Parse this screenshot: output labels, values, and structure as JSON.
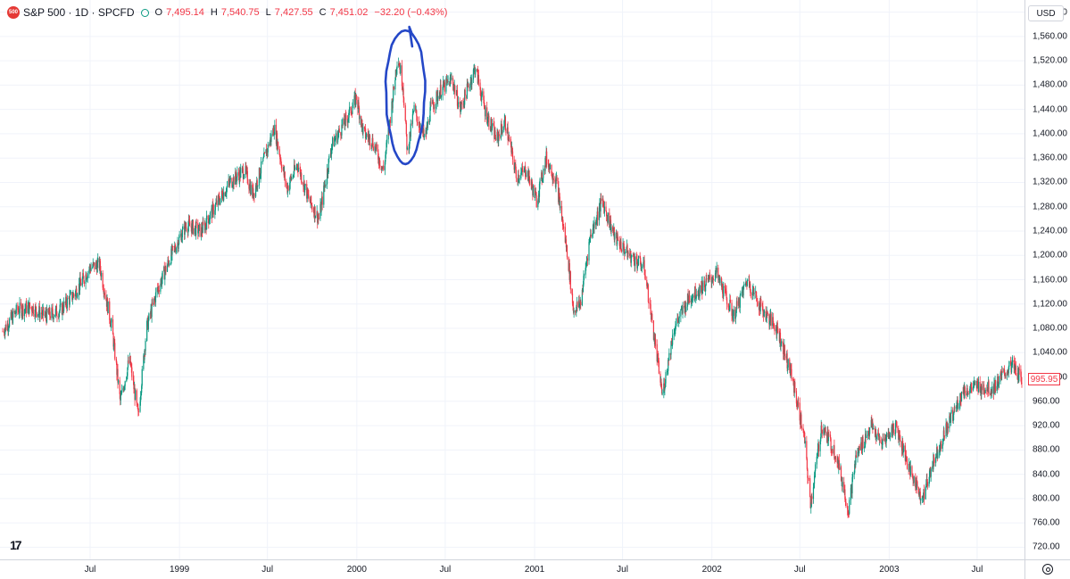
{
  "legend": {
    "symbol_badge": "500",
    "title": "S&P 500 · 1D · SPCFD",
    "open_label": "O",
    "open": "7,495.14",
    "high_label": "H",
    "high": "7,540.75",
    "low_label": "L",
    "low": "7,427.55",
    "close_label": "C",
    "close": "7,451.02",
    "change": "−32.20 (−0.43%)"
  },
  "currency": "USD",
  "last_price_label": "995.95",
  "colors": {
    "up": "#089981",
    "down": "#f23645",
    "annotation": "#2447c7",
    "grid": "#f0f3fa"
  },
  "icons": {
    "settings": "gear-icon",
    "logo": "tradingview-logo"
  },
  "tv_logo_text": "17",
  "chart_data": {
    "type": "candlestick",
    "title": "S&P 500 · 1D · SPCFD",
    "ylim": [
      700,
      1620
    ],
    "y_ticks": [
      720,
      760,
      800,
      840,
      880,
      920,
      960,
      1000,
      1040,
      1080,
      1120,
      1160,
      1200,
      1240,
      1280,
      1320,
      1360,
      1400,
      1440,
      1480,
      1520,
      1560,
      1600
    ],
    "y_tick_labels": [
      "720.00",
      "760.00",
      "800.00",
      "840.00",
      "880.00",
      "920.00",
      "960.00",
      "1,000.00",
      "1,040.00",
      "1,080.00",
      "1,120.00",
      "1,160.00",
      "1,200.00",
      "1,240.00",
      "1,280.00",
      "1,320.00",
      "1,360.00",
      "1,400.00",
      "1,440.00",
      "1,480.00",
      "1,520.00",
      "1,560.00",
      "1,600.00"
    ],
    "x_range": [
      "1998-01-02",
      "2003-10-01"
    ],
    "x_ticks": [
      {
        "label": "Jul",
        "date": "1998-07-01"
      },
      {
        "label": "1999",
        "date": "1999-01-01"
      },
      {
        "label": "Jul",
        "date": "1999-07-01"
      },
      {
        "label": "2000",
        "date": "2000-01-01"
      },
      {
        "label": "Jul",
        "date": "2000-07-01"
      },
      {
        "label": "2001",
        "date": "2001-01-01"
      },
      {
        "label": "Jul",
        "date": "2001-07-01"
      },
      {
        "label": "2002",
        "date": "2002-01-01"
      },
      {
        "label": "Jul",
        "date": "2002-07-01"
      },
      {
        "label": "2003",
        "date": "2003-01-01"
      },
      {
        "label": "Jul",
        "date": "2003-07-01"
      }
    ],
    "close_path": [
      [
        "1998-01-02",
        1075
      ],
      [
        "1998-02-01",
        1110
      ],
      [
        "1998-03-01",
        1115
      ],
      [
        "1998-04-01",
        1100
      ],
      [
        "1998-05-01",
        1110
      ],
      [
        "1998-06-01",
        1140
      ],
      [
        "1998-07-01",
        1180
      ],
      [
        "1998-07-20",
        1185
      ],
      [
        "1998-08-15",
        1080
      ],
      [
        "1998-09-01",
        960
      ],
      [
        "1998-09-20",
        1030
      ],
      [
        "1998-10-08",
        935
      ],
      [
        "1998-10-25",
        1080
      ],
      [
        "1998-11-15",
        1140
      ],
      [
        "1998-12-15",
        1200
      ],
      [
        "1999-01-15",
        1250
      ],
      [
        "1999-02-15",
        1240
      ],
      [
        "1999-03-15",
        1280
      ],
      [
        "1999-04-15",
        1320
      ],
      [
        "1999-05-15",
        1340
      ],
      [
        "1999-06-01",
        1300
      ],
      [
        "1999-07-15",
        1410
      ],
      [
        "1999-08-10",
        1310
      ],
      [
        "1999-09-01",
        1350
      ],
      [
        "1999-09-25",
        1290
      ],
      [
        "1999-10-15",
        1260
      ],
      [
        "1999-11-10",
        1380
      ],
      [
        "1999-12-15",
        1430
      ],
      [
        "1999-12-31",
        1460
      ],
      [
        "2000-01-15",
        1400
      ],
      [
        "2000-02-01",
        1390
      ],
      [
        "2000-02-25",
        1340
      ],
      [
        "2000-03-15",
        1460
      ],
      [
        "2000-03-25",
        1530
      ],
      [
        "2000-04-05",
        1480
      ],
      [
        "2000-04-14",
        1370
      ],
      [
        "2000-04-28",
        1440
      ],
      [
        "2000-05-20",
        1390
      ],
      [
        "2000-06-01",
        1440
      ],
      [
        "2000-06-20",
        1470
      ],
      [
        "2000-07-15",
        1490
      ],
      [
        "2000-08-01",
        1440
      ],
      [
        "2000-09-01",
        1510
      ],
      [
        "2000-09-20",
        1440
      ],
      [
        "2000-10-15",
        1390
      ],
      [
        "2000-11-01",
        1420
      ],
      [
        "2000-11-25",
        1330
      ],
      [
        "2000-12-15",
        1340
      ],
      [
        "2001-01-05",
        1290
      ],
      [
        "2001-01-25",
        1360
      ],
      [
        "2001-02-15",
        1320
      ],
      [
        "2001-03-10",
        1200
      ],
      [
        "2001-03-22",
        1110
      ],
      [
        "2001-04-05",
        1120
      ],
      [
        "2001-04-25",
        1230
      ],
      [
        "2001-05-20",
        1290
      ],
      [
        "2001-06-15",
        1230
      ],
      [
        "2001-07-15",
        1200
      ],
      [
        "2001-08-15",
        1180
      ],
      [
        "2001-09-21",
        970
      ],
      [
        "2001-10-15",
        1080
      ],
      [
        "2001-11-15",
        1130
      ],
      [
        "2001-12-15",
        1150
      ],
      [
        "2002-01-10",
        1170
      ],
      [
        "2002-02-15",
        1100
      ],
      [
        "2002-03-15",
        1160
      ],
      [
        "2002-04-15",
        1110
      ],
      [
        "2002-05-15",
        1080
      ],
      [
        "2002-06-15",
        1000
      ],
      [
        "2002-07-10",
        900
      ],
      [
        "2002-07-23",
        790
      ],
      [
        "2002-08-15",
        920
      ],
      [
        "2002-09-15",
        870
      ],
      [
        "2002-10-09",
        780
      ],
      [
        "2002-10-25",
        870
      ],
      [
        "2002-11-25",
        920
      ],
      [
        "2002-12-15",
        890
      ],
      [
        "2003-01-15",
        920
      ],
      [
        "2003-02-15",
        840
      ],
      [
        "2003-03-11",
        800
      ],
      [
        "2003-04-01",
        860
      ],
      [
        "2003-05-01",
        920
      ],
      [
        "2003-06-01",
        975
      ],
      [
        "2003-07-01",
        985
      ],
      [
        "2003-08-01",
        980
      ],
      [
        "2003-09-10",
        1020
      ],
      [
        "2003-10-01",
        996
      ]
    ],
    "last_price": 995.95,
    "annotation": {
      "type": "hand-drawn-ellipse",
      "x_range": [
        "2000-03-01",
        "2000-05-20"
      ],
      "y_range": [
        1350,
        1570
      ]
    }
  }
}
